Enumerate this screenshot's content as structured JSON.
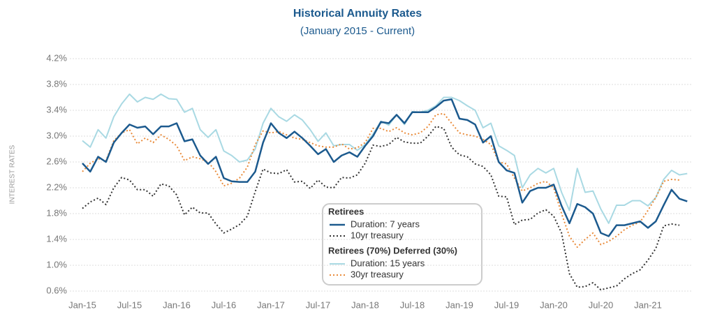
{
  "chart_data": {
    "type": "line",
    "title": "Historical Annuity Rates",
    "subtitle": "(January 2015 - Current)",
    "y_label": "INTEREST RATES",
    "categories": [
      "Jan-15",
      null,
      null,
      null,
      null,
      null,
      "Jul-15",
      null,
      null,
      null,
      null,
      null,
      "Jan-16",
      null,
      null,
      null,
      null,
      null,
      "Jul-16",
      null,
      null,
      null,
      null,
      null,
      "Jan-17",
      null,
      null,
      null,
      null,
      null,
      "Jul-17",
      null,
      null,
      null,
      null,
      null,
      "Jan-18",
      null,
      null,
      null,
      null,
      null,
      "Jul-18",
      null,
      null,
      null,
      null,
      null,
      "Jan-19",
      null,
      null,
      null,
      null,
      null,
      "Jul-19",
      null,
      null,
      null,
      null,
      null,
      "Jan-20",
      null,
      null,
      null,
      null,
      null,
      "Jul-20",
      null,
      null,
      null,
      null,
      null,
      "Jan-21",
      null,
      null,
      null,
      null,
      null
    ],
    "legend_titles": [
      "Retirees",
      "Retirees (70%) Deferred (30%)"
    ],
    "series": [
      {
        "name": "Duration: 7 years",
        "color": "#1c5a8e",
        "style": "solid",
        "values": [
          2.58,
          2.45,
          2.68,
          2.6,
          2.9,
          3.05,
          3.18,
          3.13,
          3.15,
          3.03,
          3.15,
          3.15,
          3.2,
          2.92,
          2.95,
          2.7,
          2.57,
          2.68,
          2.35,
          2.3,
          2.29,
          2.29,
          2.45,
          2.9,
          3.2,
          3.05,
          2.97,
          3.07,
          2.97,
          2.85,
          2.72,
          2.8,
          2.6,
          2.7,
          2.75,
          2.68,
          2.85,
          3.0,
          3.22,
          3.2,
          3.33,
          3.2,
          3.37,
          3.37,
          3.37,
          3.45,
          3.55,
          3.57,
          3.27,
          3.25,
          3.18,
          2.9,
          3.0,
          2.6,
          2.47,
          2.43,
          1.97,
          2.15,
          2.2,
          2.2,
          2.25,
          1.92,
          1.65,
          1.95,
          1.9,
          1.8,
          1.5,
          1.45,
          1.62,
          1.62,
          1.65,
          1.68,
          1.58,
          1.68,
          1.93,
          2.17,
          2.03,
          1.99
        ]
      },
      {
        "name": "10yr treasury",
        "color": "#333333",
        "style": "dotted",
        "values": [
          1.88,
          1.98,
          2.04,
          1.94,
          2.2,
          2.36,
          2.32,
          2.17,
          2.17,
          2.07,
          2.26,
          2.23,
          2.09,
          1.78,
          1.9,
          1.81,
          1.81,
          1.64,
          1.5,
          1.56,
          1.63,
          1.76,
          2.14,
          2.49,
          2.43,
          2.42,
          2.48,
          2.29,
          2.3,
          2.19,
          2.32,
          2.21,
          2.2,
          2.36,
          2.35,
          2.4,
          2.58,
          2.86,
          2.84,
          2.87,
          2.98,
          2.91,
          2.89,
          2.89,
          3.0,
          3.15,
          3.12,
          2.83,
          2.71,
          2.68,
          2.57,
          2.53,
          2.4,
          2.07,
          2.06,
          1.63,
          1.7,
          1.71,
          1.81,
          1.86,
          1.76,
          1.5,
          0.87,
          0.66,
          0.67,
          0.73,
          0.62,
          0.65,
          0.68,
          0.79,
          0.87,
          0.93,
          1.08,
          1.26,
          1.61,
          1.64,
          1.62,
          null
        ]
      },
      {
        "name": "Duration: 15 years",
        "color": "#a9d9e3",
        "style": "solid",
        "values": [
          2.93,
          2.83,
          3.1,
          2.97,
          3.3,
          3.5,
          3.65,
          3.53,
          3.6,
          3.57,
          3.65,
          3.58,
          3.57,
          3.37,
          3.43,
          3.1,
          2.98,
          3.1,
          2.77,
          2.7,
          2.6,
          2.63,
          2.8,
          3.2,
          3.43,
          3.3,
          3.23,
          3.33,
          3.25,
          3.1,
          2.92,
          3.05,
          2.85,
          2.87,
          2.87,
          2.78,
          2.87,
          3.03,
          3.23,
          3.17,
          3.33,
          3.18,
          3.38,
          3.37,
          3.4,
          3.47,
          3.6,
          3.6,
          3.55,
          3.47,
          3.4,
          3.13,
          3.2,
          2.85,
          2.78,
          2.7,
          2.2,
          2.4,
          2.5,
          2.43,
          2.5,
          2.13,
          1.85,
          2.5,
          2.13,
          2.15,
          1.87,
          1.65,
          1.93,
          1.93,
          2.0,
          2.0,
          1.92,
          2.05,
          2.33,
          2.47,
          2.4,
          2.42
        ]
      },
      {
        "name": "30yr treasury",
        "color": "#e98b3a",
        "style": "dotted",
        "values": [
          2.45,
          2.58,
          2.65,
          2.62,
          2.93,
          3.05,
          3.1,
          2.88,
          2.97,
          2.9,
          3.02,
          2.95,
          2.85,
          2.62,
          2.68,
          2.65,
          2.6,
          2.45,
          2.23,
          2.27,
          2.35,
          2.52,
          2.87,
          3.08,
          3.05,
          3.07,
          3.02,
          2.97,
          2.95,
          2.9,
          2.85,
          2.83,
          2.83,
          2.88,
          2.8,
          2.82,
          2.9,
          3.12,
          3.12,
          3.07,
          3.13,
          3.05,
          3.02,
          3.05,
          3.15,
          3.33,
          3.35,
          3.2,
          3.05,
          3.02,
          3.0,
          2.95,
          2.87,
          2.6,
          2.57,
          2.35,
          2.15,
          2.2,
          2.27,
          2.3,
          2.2,
          1.8,
          1.45,
          1.28,
          1.4,
          1.5,
          1.32,
          1.37,
          1.45,
          1.55,
          1.62,
          1.67,
          1.85,
          2.05,
          2.3,
          2.33,
          2.32,
          null
        ]
      }
    ],
    "ylim": [
      0.6,
      4.2
    ],
    "yticks": [
      {
        "value": 0.6,
        "label": "0.6%"
      },
      {
        "value": 1.0,
        "label": "1.0%"
      },
      {
        "value": 1.4,
        "label": "1.4%"
      },
      {
        "value": 1.8,
        "label": "1.8%"
      },
      {
        "value": 2.2,
        "label": "2.2%"
      },
      {
        "value": 2.6,
        "label": "2.6%"
      },
      {
        "value": 3.0,
        "label": "3.0%"
      },
      {
        "value": 3.4,
        "label": "3.4%"
      },
      {
        "value": 3.8,
        "label": "3.8%"
      },
      {
        "value": 4.2,
        "label": "4.2%"
      }
    ],
    "grid": true
  }
}
